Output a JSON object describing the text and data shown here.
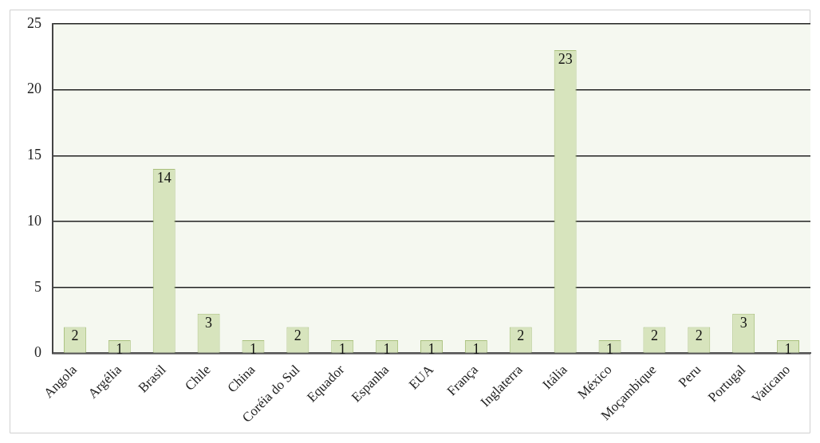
{
  "chart_data": {
    "type": "bar",
    "categories": [
      "Angola",
      "Argélia",
      "Brasil",
      "Chile",
      "China",
      "Coréia do Sul",
      "Equador",
      "Espanha",
      "EUA",
      "França",
      "Inglaterra",
      "Itália",
      "México",
      "Moçambique",
      "Peru",
      "Portugal",
      "Vaticano"
    ],
    "values": [
      2,
      1,
      14,
      3,
      1,
      2,
      1,
      1,
      1,
      1,
      2,
      23,
      1,
      2,
      2,
      3,
      1
    ],
    "color": "#d7e4bd",
    "ylim": [
      0,
      25
    ],
    "yticks": [
      0,
      5,
      10,
      15,
      20,
      25
    ],
    "grid": "y",
    "data_labels": true
  }
}
